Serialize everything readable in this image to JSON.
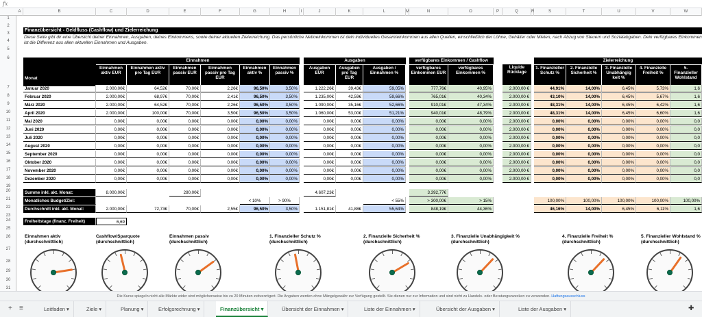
{
  "formula_bar": {
    "fx": "fx"
  },
  "columns": [
    "A",
    "B",
    "C",
    "D",
    "E",
    "F",
    "G",
    "H",
    "I",
    "J",
    "K",
    "L",
    "M",
    "N",
    "O",
    "P",
    "Q",
    "R",
    "S",
    "T",
    "U",
    "V",
    "W"
  ],
  "rows": [
    "1",
    "2",
    "3",
    "4",
    "5",
    "6",
    "7",
    "8",
    "9",
    "10",
    "11",
    "12",
    "13",
    "14",
    "15",
    "16",
    "17",
    "18",
    "19",
    "20",
    "21",
    "22",
    "23",
    "24",
    "25",
    "26",
    "27",
    "28",
    "29",
    "30",
    "31"
  ],
  "banner": "Finanzübersicht - Geldfluss (Cashflow) und Zielerreichung",
  "description": "Diese Seite gibt dir eine Übersicht deiner Einnahmen, Ausgaben, deines Einkommens, sowie deiner aktuellen Zielerreichung. Das persönliche Nettoeinkommen ist dein individuelles Gesamteinkommen aus allen Quellen, einschließlich der Löhne, Gehälter oder Mieten, nach Abzug von Steuern und Sozialabgaben. Dein verfügbares Einkommen ist die Differenz aus allen aktuellen Einnahmen und Ausgaben.",
  "groups": {
    "einnahmen": "Einnahmen",
    "ausgaben": "Ausgaben",
    "verf": "verfügbares Einkommen / Cashflow",
    "ziel": "Zielerreichung"
  },
  "headers": {
    "monat": "Monat",
    "einnahmen_aktiv": "Einnahmen aktiv EUR",
    "einnahmen_aktiv_tag": "Einnahmen aktiv pro Tag EUR",
    "einnahmen_passiv": "Einnahmen passiv EUR",
    "einnahmen_passiv_tag": "Einnahmen passiv pro Tag EUR",
    "einnahmen_aktiv_pct": "Einnahmen aktiv %",
    "einnahmen_passiv_pct": "Einnahmen passiv %",
    "ausgaben": "Ausgaben EUR",
    "ausgaben_tag": "Ausgaben pro Tag EUR",
    "ausgaben_pct": "Ausgaben / Einnahmen %",
    "verf_eur": "verfügbares Einkommen EUR",
    "verf_pct": "verfügbares Einkommen %",
    "ruecklage": "Liquide Rücklage",
    "z1": "1. Finanzieller Schutz %",
    "z2": "2. Finanzielle Sicherheit %",
    "z3": "3. Finanzielle Unabhängig keit %",
    "z4": "4. Finanzielle Freiheit %",
    "z5": "5. Finanzieller Wohlstand"
  },
  "months": [
    {
      "m": "Januar 2020",
      "c": "2.000,00€",
      "d": "64,52€",
      "e": "70,00€",
      "f": "2,26€",
      "g": "96,50%",
      "h": "3,50%",
      "j": "1.222,26€",
      "k": "39,43€",
      "l": "59,05%",
      "n": "777,76€",
      "o": "40,95%",
      "q": "2.000,00 €",
      "s": "44,91%",
      "t": "14,00%",
      "u": "6,45%",
      "v": "5,73%",
      "w": "1,6"
    },
    {
      "m": "Februar 2020",
      "c": "2.000,00€",
      "d": "68,97€",
      "e": "70,00€",
      "f": "2,41€",
      "g": "96,50%",
      "h": "3,50%",
      "j": "1.235,00€",
      "k": "42,59€",
      "l": "59,66%",
      "n": "765,01€",
      "o": "40,34%",
      "q": "2.000,00 €",
      "s": "43,10%",
      "t": "14,00%",
      "u": "6,45%",
      "v": "5,67%",
      "w": "1,6"
    },
    {
      "m": "März 2020",
      "c": "2.000,00€",
      "d": "64,52€",
      "e": "70,00€",
      "f": "2,26€",
      "g": "96,50%",
      "h": "3,50%",
      "j": "1.090,00€",
      "k": "35,16€",
      "l": "52,66%",
      "n": "910,01€",
      "o": "47,34%",
      "q": "2.000,00 €",
      "s": "48,31%",
      "t": "14,00%",
      "u": "6,45%",
      "v": "6,42%",
      "w": "1,6"
    },
    {
      "m": "April 2020",
      "c": "2.000,00€",
      "d": "100,00€",
      "e": "70,00€",
      "f": "3,50€",
      "g": "96,50%",
      "h": "3,50%",
      "j": "1.060,00€",
      "k": "53,00€",
      "l": "51,21%",
      "n": "940,01€",
      "o": "48,79%",
      "q": "2.000,00 €",
      "s": "48,31%",
      "t": "14,00%",
      "u": "6,45%",
      "v": "6,60%",
      "w": "1,6"
    },
    {
      "m": "Mai 2020",
      "c": "0,00€",
      "d": "0,00€",
      "e": "0,00€",
      "f": "0,00€",
      "g": "0,00%",
      "h": "0,00%",
      "j": "0,00€",
      "k": "0,00€",
      "l": "0,00%",
      "n": "0,00€",
      "o": "0,00%",
      "q": "2.000,00 €",
      "s": "0,00%",
      "t": "0,00%",
      "u": "0,00%",
      "v": "0,00%",
      "w": "0,0"
    },
    {
      "m": "Juni 2020",
      "c": "0,00€",
      "d": "0,00€",
      "e": "0,00€",
      "f": "0,00€",
      "g": "0,00%",
      "h": "0,00%",
      "j": "0,00€",
      "k": "0,00€",
      "l": "0,00%",
      "n": "0,00€",
      "o": "0,00%",
      "q": "2.000,00 €",
      "s": "0,00%",
      "t": "0,00%",
      "u": "0,00%",
      "v": "0,00%",
      "w": "0,0"
    },
    {
      "m": "Juli 2020",
      "c": "0,00€",
      "d": "0,00€",
      "e": "0,00€",
      "f": "0,00€",
      "g": "0,00%",
      "h": "0,00%",
      "j": "0,00€",
      "k": "0,00€",
      "l": "0,00%",
      "n": "0,00€",
      "o": "0,00%",
      "q": "2.000,00 €",
      "s": "0,00%",
      "t": "0,00%",
      "u": "0,00%",
      "v": "0,00%",
      "w": "0,0"
    },
    {
      "m": "August 2020",
      "c": "0,00€",
      "d": "0,00€",
      "e": "0,00€",
      "f": "0,00€",
      "g": "0,00%",
      "h": "0,00%",
      "j": "0,00€",
      "k": "0,00€",
      "l": "0,00%",
      "n": "0,00€",
      "o": "0,00%",
      "q": "2.000,00 €",
      "s": "0,00%",
      "t": "0,00%",
      "u": "0,00%",
      "v": "0,00%",
      "w": "0,0"
    },
    {
      "m": "September 2020",
      "c": "0,00€",
      "d": "0,00€",
      "e": "0,00€",
      "f": "0,00€",
      "g": "0,00%",
      "h": "0,00%",
      "j": "0,00€",
      "k": "0,00€",
      "l": "0,00%",
      "n": "0,00€",
      "o": "0,00%",
      "q": "2.000,00 €",
      "s": "0,00%",
      "t": "0,00%",
      "u": "0,00%",
      "v": "0,00%",
      "w": "0,0"
    },
    {
      "m": "Oktober 2020",
      "c": "0,00€",
      "d": "0,00€",
      "e": "0,00€",
      "f": "0,00€",
      "g": "0,00%",
      "h": "0,00%",
      "j": "0,00€",
      "k": "0,00€",
      "l": "0,00%",
      "n": "0,00€",
      "o": "0,00%",
      "q": "2.000,00 €",
      "s": "0,00%",
      "t": "0,00%",
      "u": "0,00%",
      "v": "0,00%",
      "w": "0,0"
    },
    {
      "m": "November 2020",
      "c": "0,00€",
      "d": "0,00€",
      "e": "0,00€",
      "f": "0,00€",
      "g": "0,00%",
      "h": "0,00%",
      "j": "0,00€",
      "k": "0,00€",
      "l": "0,00%",
      "n": "0,00€",
      "o": "0,00%",
      "q": "2.000,00 €",
      "s": "0,00%",
      "t": "0,00%",
      "u": "0,00%",
      "v": "0,00%",
      "w": "0,0"
    },
    {
      "m": "Dezember 2020",
      "c": "0,00€",
      "d": "0,00€",
      "e": "0,00€",
      "f": "0,00€",
      "g": "0,00%",
      "h": "0,00%",
      "j": "0,00€",
      "k": "0,00€",
      "l": "0,00%",
      "n": "0,00€",
      "o": "0,00%",
      "q": "2.000,00 €",
      "s": "0,00%",
      "t": "0,00%",
      "u": "0,00%",
      "v": "0,00%",
      "w": "0,0"
    }
  ],
  "summary": {
    "summe_label": "Summe inkl. akt. Monat:",
    "summe_c": "8.000,00€",
    "summe_e": "280,00€",
    "summe_j": "4.607,23€",
    "summe_n": "3.392,77€",
    "budget_label": "Monatliches Budget/Ziel:",
    "budget_g": "< 10%",
    "budget_h": "> 90%",
    "budget_l": "< 55%",
    "budget_n": "> 300,00€",
    "budget_o": "> 15%",
    "budget_s": "100,00%",
    "budget_t": "100,00%",
    "budget_u": "100,00%",
    "budget_v": "100,00%",
    "budget_w": "100,00%",
    "avg_label": "Durchschnitt inkl. akt. Monat:",
    "avg_c": "2.000,00€",
    "avg_d": "72,73€",
    "avg_e": "70,00€",
    "avg_f": "2,55€",
    "avg_g": "96,50%",
    "avg_h": "3,50%",
    "avg_j": "1.151,81€",
    "avg_k": "41,88€",
    "avg_l": "55,64%",
    "avg_n": "848,19€",
    "avg_o": "44,36%",
    "avg_s": "46,16%",
    "avg_t": "14,00%",
    "avg_u": "6,45%",
    "avg_v": "6,11%",
    "avg_w": "1,6",
    "frei_label": "Freiheitstage (finanz. Freiheit)",
    "frei_val": "6,69"
  },
  "gauges": [
    {
      "title": "Einnahmen aktiv (durchschnittlich)",
      "level": 0.8
    },
    {
      "title": "Cashflow/Sparquote (durchschnittlich)",
      "level": 0.45
    },
    {
      "title": "Einnahmen passiv (durchschnittlich)",
      "level": 0.7
    },
    {
      "title": "1. Finanzieller Schutz % (durchschnittlich)",
      "level": 0.46
    },
    {
      "title": "2. Finanzielle Sicherheit % (durchschnittlich)",
      "level": 0.72
    },
    {
      "title": "3. Finanzielle Unabhängigkeit % (durchschnittlich)",
      "level": 0.66
    },
    {
      "title": "4. Finanzielle Freiheit % (durchschnittlich)",
      "level": 0.66
    },
    {
      "title": "5. Finanzieller Wohlstand % (durchschnittlich)",
      "level": 0.63
    }
  ],
  "footer": {
    "text": "Die Kurse spiegeln nicht alle Märkte wider sind möglicherweise bis zu 20 Minuten zeitverzögert. Die Angaben werden ohne Mängelgewähr zur Verfügung gestellt. Sie dienen nur zur Information und sind nicht zu Handels- oder Beratungszwecken zu verwenden.",
    "link": "Haftungsausschluss"
  },
  "tabs": [
    "Leitfaden",
    "Ziele",
    "Planung",
    "Erfolgsrechnung",
    "Finanzübersicht",
    "Übersicht der Einnahmen",
    "Liste der Einnahmen",
    "Übersicht der Ausgaben",
    "Liste der Ausgaben"
  ],
  "active_tab": "Finanzübersicht",
  "colors": {
    "blue": "#c9daf8",
    "green": "#d9ead3",
    "orange": "#fce5cd",
    "active_tab": "#188038"
  }
}
